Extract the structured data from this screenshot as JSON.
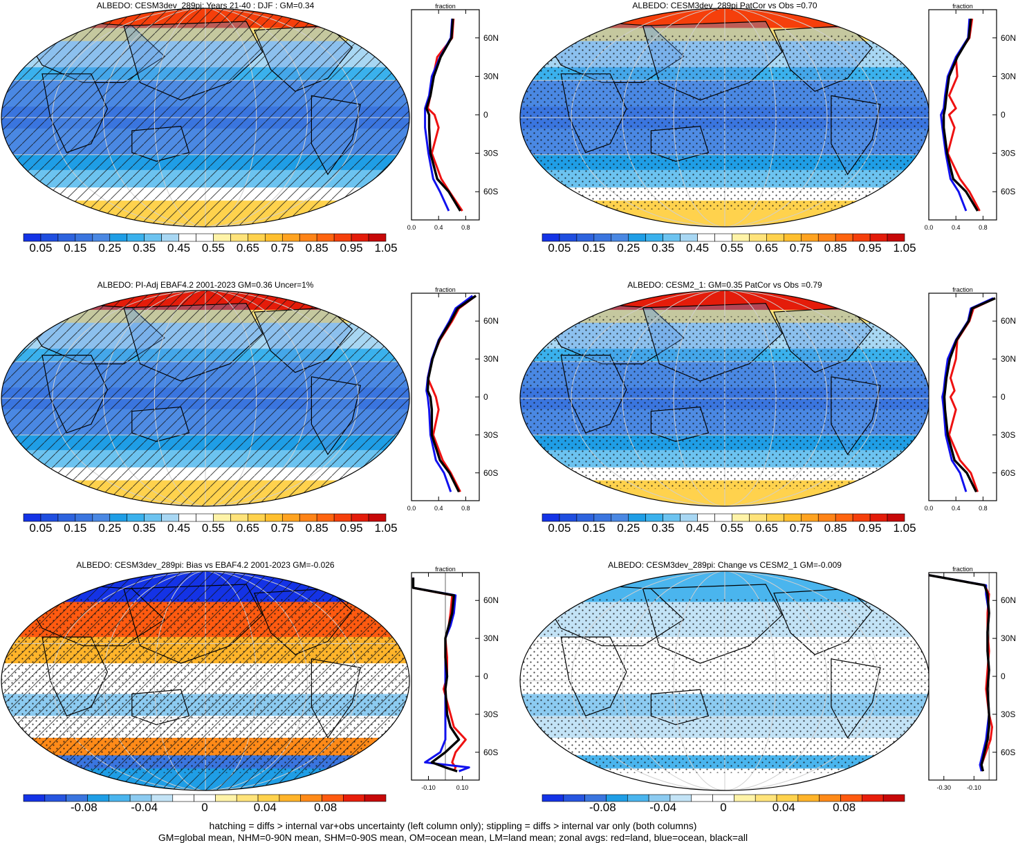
{
  "colors": {
    "seq": [
      "#1433e6",
      "#1f4ee0",
      "#2d63de",
      "#3a75df",
      "#4a88e3",
      "#1f9ee6",
      "#3ab1ed",
      "#6cc3f0",
      "#a8d7f3",
      "#ffffff",
      "#ffffff",
      "#fff3a8",
      "#ffe37a",
      "#ffd24d",
      "#ffbf2e",
      "#ffa320",
      "#ff8417",
      "#ff640f",
      "#f53f0b",
      "#e41c0a",
      "#c70808"
    ],
    "div": [
      "#1433e6",
      "#2755e0",
      "#3a75df",
      "#1f9ee6",
      "#4ab5ee",
      "#8ccbf1",
      "#c3e3f6",
      "#ffffff",
      "#ffffff",
      "#fff3a8",
      "#ffe37a",
      "#ffd24d",
      "#ffb42a",
      "#ff8a18",
      "#ff5a10",
      "#e81e0b",
      "#c70808"
    ],
    "land": "#d2d2d2",
    "zonal_land": "#ee1111",
    "zonal_ocean": "#1111ee",
    "zonal_all": "#000000"
  },
  "panels": [
    {
      "title": "ALBEDO: CESM3dev_289pi: Years 21-40 : DJF : GM=0.34",
      "colorbar_ticks": [
        "0.05",
        "0.15",
        "0.25",
        "0.35",
        "0.45",
        "0.55",
        "0.65",
        "0.75",
        "0.85",
        "0.95",
        "1.05"
      ],
      "zonal": {
        "title": "fraction",
        "xticks": [
          "0.0",
          "0.4",
          "0.8"
        ],
        "xrange": [
          0,
          1.0
        ],
        "lat_labels": [
          "60N",
          "30N",
          "0",
          "30S",
          "60S"
        ],
        "lat": [
          75,
          60,
          45,
          30,
          15,
          5,
          0,
          -10,
          -30,
          -50,
          -60,
          -75
        ],
        "land": [
          0.62,
          0.6,
          0.38,
          0.32,
          0.28,
          0.24,
          0.34,
          0.4,
          0.3,
          0.44,
          0.56,
          0.75
        ],
        "ocean": [
          0.6,
          0.58,
          0.42,
          0.3,
          0.26,
          0.2,
          0.2,
          0.2,
          0.25,
          0.32,
          0.42,
          0.55
        ],
        "all": [
          0.61,
          0.59,
          0.43,
          0.33,
          0.28,
          0.22,
          0.26,
          0.26,
          0.28,
          0.38,
          0.55,
          0.72
        ]
      },
      "hatch": true,
      "stipple": false
    },
    {
      "title": "ALBEDO: CESM3dev_289pi PatCor vs Obs =0.70",
      "colorbar_ticks": [
        "0.05",
        "0.15",
        "0.25",
        "0.35",
        "0.45",
        "0.55",
        "0.65",
        "0.75",
        "0.85",
        "0.95",
        "1.05"
      ],
      "zonal": {
        "title": "fraction",
        "xticks": [
          "0.0",
          "0.4",
          "0.8"
        ],
        "xrange": [
          0,
          1.0
        ],
        "lat_labels": [
          "60N",
          "30N",
          "0",
          "30S",
          "60S"
        ],
        "lat": [
          75,
          60,
          45,
          30,
          15,
          5,
          0,
          -10,
          -30,
          -50,
          -60,
          -75
        ],
        "land": [
          0.64,
          0.6,
          0.4,
          0.42,
          0.3,
          0.4,
          0.3,
          0.38,
          0.28,
          0.46,
          0.6,
          0.75
        ],
        "ocean": [
          0.6,
          0.58,
          0.4,
          0.28,
          0.24,
          0.22,
          0.18,
          0.2,
          0.25,
          0.32,
          0.44,
          0.55
        ],
        "all": [
          0.62,
          0.59,
          0.42,
          0.3,
          0.26,
          0.24,
          0.22,
          0.22,
          0.27,
          0.36,
          0.55,
          0.72
        ]
      },
      "hatch": false,
      "stipple": true
    },
    {
      "title": "ALBEDO: PI-Adj EBAF4.2 2001-2023 GM=0.36 Uncer=1%",
      "colorbar_ticks": [
        "0.05",
        "0.15",
        "0.25",
        "0.35",
        "0.45",
        "0.55",
        "0.65",
        "0.75",
        "0.85",
        "0.95",
        "1.05"
      ],
      "zonal": {
        "title": "fraction",
        "xticks": [
          "0.0",
          "0.4",
          "0.8"
        ],
        "xrange": [
          0,
          1.0
        ],
        "lat_labels": [
          "60N",
          "30N",
          "0",
          "30S",
          "60S"
        ],
        "lat": [
          80,
          70,
          60,
          45,
          30,
          15,
          5,
          0,
          -10,
          -30,
          -50,
          -60,
          -75
        ],
        "land": [
          0.95,
          0.7,
          0.6,
          0.42,
          0.3,
          0.24,
          0.32,
          0.36,
          0.4,
          0.32,
          0.46,
          0.58,
          0.72
        ],
        "ocean": [
          0.9,
          0.65,
          0.56,
          0.4,
          0.3,
          0.24,
          0.22,
          0.24,
          0.26,
          0.28,
          0.36,
          0.48,
          0.58
        ],
        "all": [
          0.95,
          0.68,
          0.58,
          0.41,
          0.31,
          0.25,
          0.24,
          0.28,
          0.3,
          0.3,
          0.42,
          0.56,
          0.7
        ]
      },
      "hatch": true,
      "stipple": false
    },
    {
      "title": "ALBEDO: CESM2_1: GM=0.35 PatCor vs Obs =0.79",
      "colorbar_ticks": [
        "0.05",
        "0.15",
        "0.25",
        "0.35",
        "0.45",
        "0.55",
        "0.65",
        "0.75",
        "0.85",
        "0.95",
        "1.05"
      ],
      "zonal": {
        "title": "fraction",
        "xticks": [
          "0.0",
          "0.4",
          "0.8"
        ],
        "xrange": [
          0,
          1.0
        ],
        "lat_labels": [
          "60N",
          "30N",
          "0",
          "30S",
          "60S"
        ],
        "lat": [
          78,
          70,
          60,
          45,
          30,
          15,
          5,
          0,
          -10,
          -30,
          -50,
          -60,
          -75
        ],
        "land": [
          0.98,
          0.66,
          0.6,
          0.42,
          0.4,
          0.32,
          0.38,
          0.32,
          0.4,
          0.3,
          0.46,
          0.62,
          0.72
        ],
        "ocean": [
          0.95,
          0.62,
          0.58,
          0.4,
          0.28,
          0.24,
          0.22,
          0.2,
          0.22,
          0.25,
          0.34,
          0.46,
          0.55
        ],
        "all": [
          0.98,
          0.64,
          0.59,
          0.41,
          0.31,
          0.26,
          0.24,
          0.23,
          0.24,
          0.28,
          0.38,
          0.56,
          0.7
        ]
      },
      "hatch": false,
      "stipple": true
    },
    {
      "title": "ALBEDO: CESM3dev_289pi: Bias vs EBAF4.2 2001-2023 GM=-0.026",
      "colorbar_ticks": [
        "-0.08",
        "-0.04",
        "0",
        "0.04",
        "0.08"
      ],
      "zonal": {
        "title": "fraction",
        "xticks": [
          "-0.10",
          "0.10"
        ],
        "xrange": [
          -0.2,
          0.2
        ],
        "lat_labels": [
          "60N",
          "30N",
          "0",
          "30S",
          "60S"
        ],
        "lat": [
          78,
          70,
          64,
          50,
          40,
          30,
          15,
          0,
          -10,
          -30,
          -40,
          -50,
          -60,
          -68,
          -72,
          -75
        ],
        "land": [
          -0.19,
          -0.19,
          0.04,
          0.03,
          0.02,
          0.0,
          0.01,
          0.01,
          -0.01,
          0.03,
          0.05,
          0.12,
          0.06,
          0.04,
          0.06,
          0.05
        ],
        "ocean": [
          -0.19,
          -0.19,
          0.06,
          0.05,
          0.03,
          0.0,
          0.0,
          0.0,
          0.0,
          0.0,
          0.0,
          0.0,
          -0.03,
          -0.12,
          0.14,
          0.08
        ],
        "all": [
          -0.19,
          -0.19,
          0.05,
          0.04,
          0.02,
          0.0,
          0.0,
          0.01,
          0.0,
          0.01,
          0.03,
          0.08,
          0.0,
          -0.08,
          0.0,
          0.07
        ]
      },
      "hatch": true,
      "stipple": true
    },
    {
      "title": "ALBEDO: CESM3dev_289pi: Change vs CESM2_1 GM=-0.009",
      "colorbar_ticks": [
        "-0.08",
        "-0.04",
        "0",
        "0.04",
        "0.08"
      ],
      "zonal": {
        "title": "fraction",
        "xticks": [
          "-0.30",
          "-0.10"
        ],
        "xrange": [
          -0.4,
          0.05
        ],
        "lat_labels": [
          "60N",
          "30N",
          "0",
          "30S",
          "60S"
        ],
        "lat": [
          80,
          72,
          65,
          50,
          35,
          20,
          5,
          -10,
          -30,
          -40,
          -50,
          -60,
          -70,
          -75
        ],
        "land": [
          -0.4,
          -0.03,
          0.0,
          -0.01,
          -0.01,
          0.0,
          -0.01,
          -0.02,
          0.0,
          0.02,
          0.01,
          -0.02,
          -0.05,
          -0.04
        ],
        "ocean": [
          -0.4,
          -0.02,
          -0.02,
          0.0,
          -0.01,
          -0.01,
          0.0,
          -0.01,
          0.0,
          -0.01,
          -0.02,
          -0.04,
          -0.06,
          -0.05
        ],
        "all": [
          -0.4,
          -0.03,
          -0.01,
          0.0,
          -0.01,
          -0.01,
          0.0,
          -0.01,
          0.0,
          0.0,
          -0.01,
          -0.03,
          -0.05,
          -0.04
        ]
      },
      "hatch": false,
      "stipple": true
    }
  ],
  "footnotes": [
    "hatching = diffs > internal var+obs uncertainty (left column only); stippling = diffs > internal var only (both columns)",
    "GM=global mean, NHM=0-90N mean, SHM=0-90S mean, OM=ocean mean, LM=land mean; zonal avgs: red=land, blue=ocean, black=all"
  ]
}
